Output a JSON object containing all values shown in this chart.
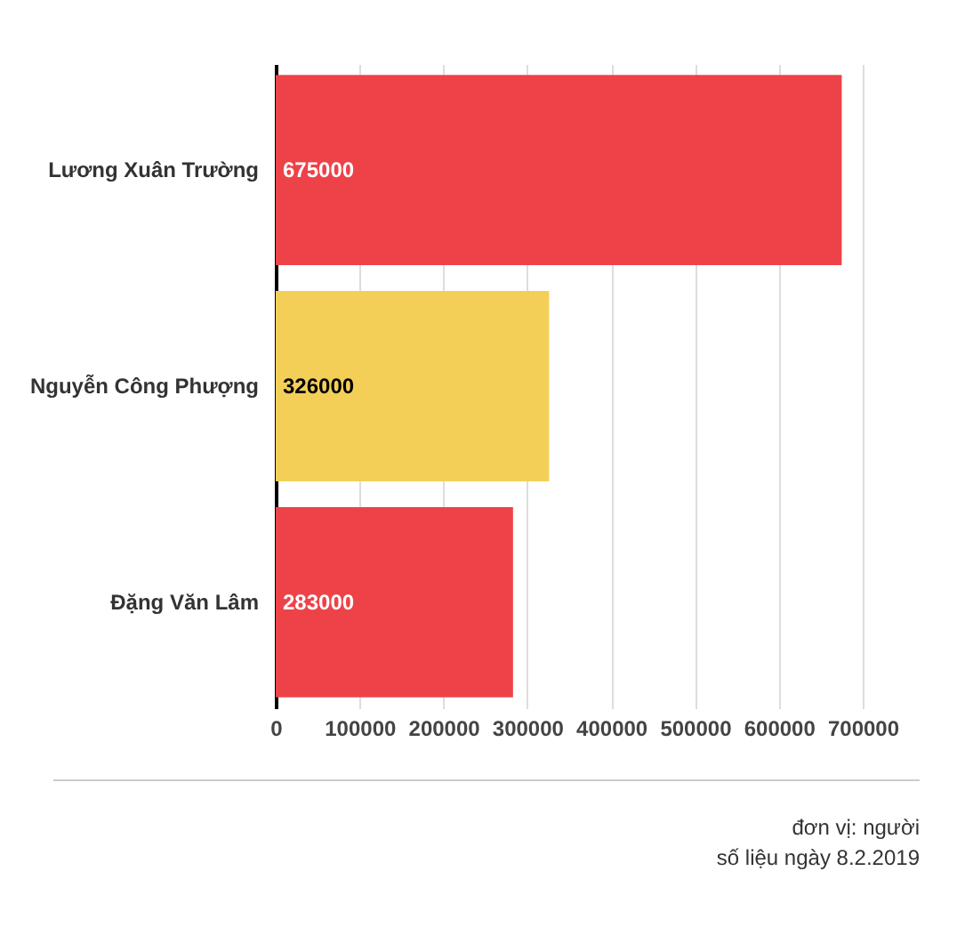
{
  "chart_data": {
    "type": "bar",
    "orientation": "horizontal",
    "categories": [
      "Lương Xuân Trường",
      "Nguyễn Công Phượng",
      "Đặng Văn Lâm"
    ],
    "values": [
      675000,
      326000,
      283000
    ],
    "colors": [
      "#ee4249",
      "#f4cf58",
      "#ee4249"
    ],
    "xlim": [
      0,
      700000
    ],
    "xticks": [
      0,
      100000,
      200000,
      300000,
      400000,
      500000,
      600000,
      700000
    ],
    "grid": "x",
    "data_labels": true,
    "annotations": [
      "đơn vị: người",
      "số liệu ngày 8.2.2019"
    ]
  }
}
